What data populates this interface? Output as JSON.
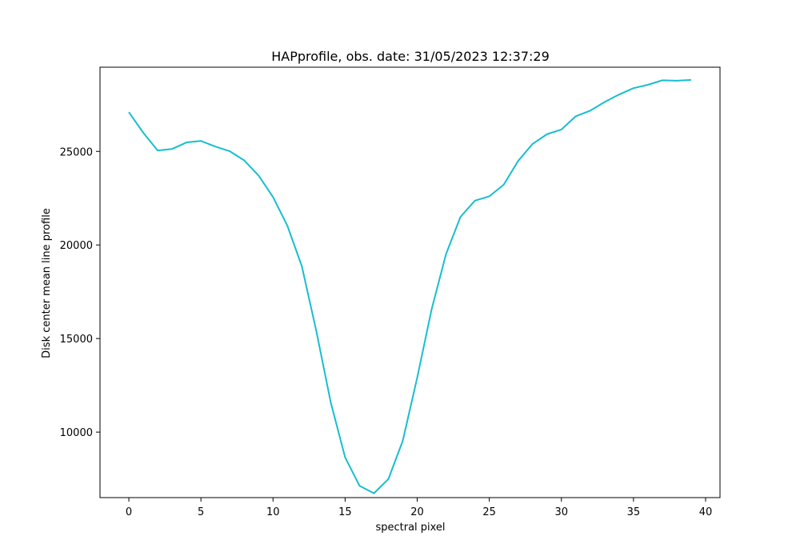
{
  "chart_data": {
    "type": "line",
    "title": "HAPprofile, obs. date: 31/05/2023 12:37:29",
    "xlabel": "spectral pixel",
    "ylabel": "Disk center mean line profile",
    "xlim": [
      -2,
      41
    ],
    "ylim": [
      6500,
      29500
    ],
    "xticks": [
      0,
      5,
      10,
      15,
      20,
      25,
      30,
      35,
      40
    ],
    "xtick_labels": [
      "0",
      "5",
      "10",
      "15",
      "20",
      "25",
      "30",
      "35",
      "40"
    ],
    "yticks": [
      10000,
      15000,
      20000,
      25000
    ],
    "ytick_labels": [
      "10000",
      "15000",
      "20000",
      "25000"
    ],
    "grid": false,
    "series": [
      {
        "color": "#17becf",
        "x": [
          0,
          1,
          2,
          3,
          4,
          5,
          6,
          7,
          8,
          9,
          10,
          11,
          12,
          13,
          14,
          15,
          16,
          17,
          18,
          19,
          20,
          21,
          22,
          23,
          24,
          25,
          26,
          27,
          28,
          29,
          30,
          31,
          32,
          33,
          34,
          35,
          36,
          37,
          38,
          39
        ],
        "values": [
          27100,
          26000,
          25050,
          25130,
          25480,
          25560,
          25260,
          25010,
          24520,
          23710,
          22560,
          21020,
          18860,
          15410,
          11600,
          8650,
          7130,
          6730,
          7490,
          9540,
          12910,
          16560,
          19520,
          21500,
          22370,
          22600,
          23220,
          24490,
          25400,
          25920,
          26170,
          26880,
          27180,
          27640,
          28040,
          28380,
          28560,
          28800,
          28780,
          28820
        ]
      }
    ]
  }
}
